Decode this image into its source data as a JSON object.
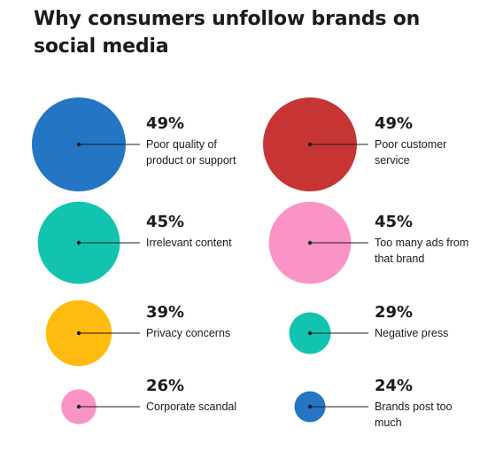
{
  "title": "Why consumers unfollow brands on social media",
  "colors": {
    "blue": "#2475c4",
    "red": "#c73434",
    "teal": "#12c4b0",
    "pink": "#fb94c6",
    "yellow": "#ffbb0f",
    "text": "#1b1b1b"
  },
  "chart_data": {
    "type": "bubble",
    "title": "Why consumers unfollow brands on social media",
    "items": [
      {
        "label": "Poor quality of product or support",
        "value": 49,
        "display": "49%",
        "color": "blue"
      },
      {
        "label": "Poor customer service",
        "value": 49,
        "display": "49%",
        "color": "red"
      },
      {
        "label": "Irrelevant content",
        "value": 45,
        "display": "45%",
        "color": "teal"
      },
      {
        "label": "Too many ads from that brand",
        "value": 45,
        "display": "45%",
        "color": "pink"
      },
      {
        "label": "Privacy concerns",
        "value": 39,
        "display": "39%",
        "color": "yellow"
      },
      {
        "label": "Negative press",
        "value": 29,
        "display": "29%",
        "color": "teal"
      },
      {
        "label": "Corporate scandal",
        "value": 26,
        "display": "26%",
        "color": "pink"
      },
      {
        "label": "Brands post too much",
        "value": 24,
        "display": "24%",
        "color": "blue"
      }
    ]
  }
}
